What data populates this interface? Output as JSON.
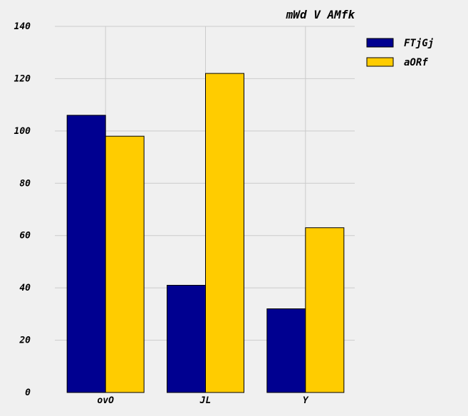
{
  "chart_data": {
    "type": "bar",
    "title": "mWd V AMfk",
    "xlabel": "",
    "ylabel": "",
    "categories": [
      "ovO",
      "JL",
      "Y"
    ],
    "series": [
      {
        "name": "FTjGj",
        "values": [
          106,
          41,
          32
        ],
        "color": "#000090"
      },
      {
        "name": "aORf",
        "values": [
          98,
          122,
          63
        ],
        "color": "#ffcc00"
      }
    ],
    "ylim": [
      0,
      140
    ],
    "yticks": [
      0,
      20,
      40,
      60,
      80,
      100,
      120,
      140
    ],
    "grid": true,
    "legend": "top-right"
  }
}
